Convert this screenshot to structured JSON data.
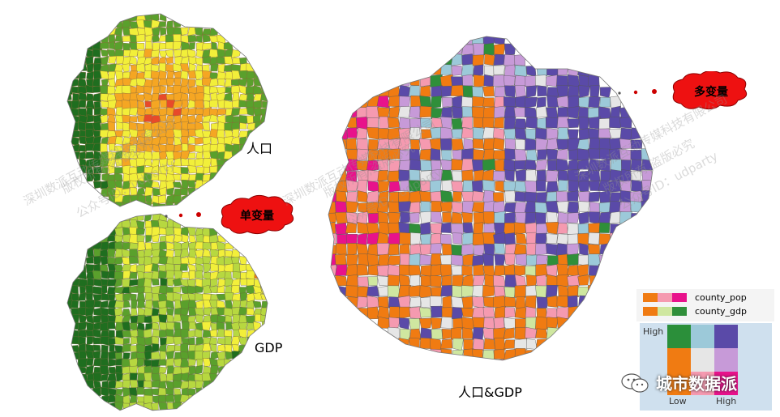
{
  "labels": {
    "pop_map": "人口",
    "gdp_map": "GDP",
    "bivariate_map": "人口&GDP",
    "single_var": "单变量",
    "multi_var": "多变量"
  },
  "legend": {
    "rows": [
      {
        "label": "county_pop",
        "colors": [
          "#f07b12",
          "#f59ab0",
          "#e8128b"
        ]
      },
      {
        "label": "county_gdp",
        "colors": [
          "#f07b12",
          "#cfe7a0",
          "#2f8f3a"
        ]
      }
    ],
    "grid": [
      [
        "#f07b12",
        "#f59ab0",
        "#e8128b"
      ],
      [
        "#f07b12",
        "#e6e6e6",
        "#c79ad8"
      ],
      [
        "#2b8f3a",
        "#9cc9d9",
        "#5a4aa8"
      ]
    ],
    "high_label": "High",
    "low_label": "Low",
    "x_high_label": "High"
  },
  "brand": {
    "name": "城市数据派"
  },
  "watermarks": [
    "深圳数派互动传媒科技有限公司",
    "版权所有,盗版必究",
    "公众号ID：udparty"
  ],
  "colors": {
    "pop": [
      "#1f6e1f",
      "#5aa02c",
      "#f2ef3a",
      "#f5a623",
      "#e84a2a"
    ],
    "gdp": [
      "#1f6e1f",
      "#5aa02c",
      "#b7d840",
      "#f2ef3a",
      "#f07b12"
    ],
    "bivariate": [
      "#f07b12",
      "#5a4aa8",
      "#c79ad8",
      "#f59ab0",
      "#e8128b",
      "#e6e6e6",
      "#9cc9d9",
      "#cfe7a0",
      "#2f8f3a"
    ],
    "cloud": "#ee1111"
  }
}
